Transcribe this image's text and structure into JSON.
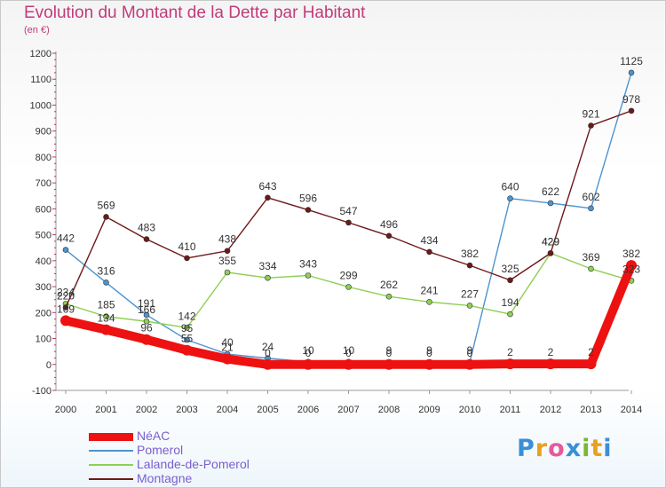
{
  "header": {
    "title": "Evolution du Montant de la Dette par Habitant",
    "unit": "(en €)"
  },
  "logo": {
    "text": "Proxiti",
    "letter_colors": [
      "#3a8fd6",
      "#e8a020",
      "#e55a9a",
      "#3a8fd6",
      "#7ab830",
      "#e8a020",
      "#3a8fd6"
    ]
  },
  "chart_data": {
    "type": "line",
    "x": [
      "2000",
      "2001",
      "2002",
      "2003",
      "2004",
      "2005",
      "2006",
      "2007",
      "2008",
      "2009",
      "2010",
      "2011",
      "2012",
      "2013",
      "2014"
    ],
    "ylim": [
      -100,
      1200
    ],
    "yticks": [
      "-100",
      "0",
      "100",
      "200",
      "300",
      "400",
      "500",
      "600",
      "700",
      "800",
      "900",
      "1000",
      "1100",
      "1200"
    ],
    "grid": false,
    "legend_position": "bottom-left",
    "series": [
      {
        "name": "NéAC",
        "color": "#ee1111",
        "values": [
          169,
          134,
          96,
          55,
          21,
          0,
          0,
          0,
          0,
          0,
          0,
          2,
          2,
          2,
          382
        ],
        "labels": [
          "169",
          "134",
          "96",
          "55",
          "21",
          "0",
          "0",
          "0",
          "0",
          "0",
          "0",
          "2",
          "2",
          "2",
          "382"
        ]
      },
      {
        "name": "Pomerol",
        "color": "#4d94d0",
        "values": [
          442,
          316,
          191,
          95,
          40,
          24,
          10,
          10,
          9,
          9,
          9,
          640,
          622,
          602,
          1125
        ],
        "labels": [
          "442",
          "316",
          "191",
          "95",
          "40",
          "24",
          "10",
          "10",
          "9",
          "9",
          "9",
          "640",
          "622",
          "602",
          "1125"
        ]
      },
      {
        "name": "Lalande-de-Pomerol",
        "color": "#8ecf55",
        "values": [
          234,
          185,
          166,
          142,
          355,
          334,
          343,
          299,
          262,
          241,
          227,
          194,
          429,
          369,
          323
        ],
        "labels": [
          "234",
          "185",
          "166",
          "142",
          "355",
          "334",
          "343",
          "299",
          "262",
          "241",
          "227",
          "194",
          "429",
          "369",
          "323"
        ]
      },
      {
        "name": "Montagne",
        "color": "#6e1818",
        "values": [
          220,
          569,
          483,
          410,
          438,
          643,
          596,
          547,
          496,
          434,
          382,
          325,
          429,
          921,
          978
        ],
        "labels": [
          "220",
          "569",
          "483",
          "410",
          "438",
          "643",
          "596",
          "547",
          "496",
          "434",
          "382",
          "325",
          "429",
          "921",
          "978"
        ]
      }
    ]
  }
}
